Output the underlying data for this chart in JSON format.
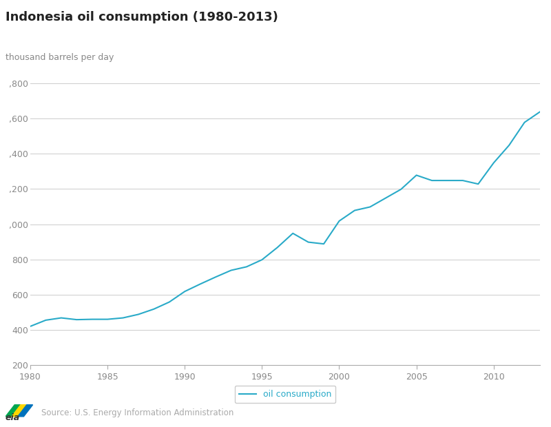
{
  "title": "Indonesia oil consumption (1980-2013)",
  "ylabel": "thousand barrels per day",
  "line_color": "#29aac8",
  "legend_label": "oil consumption",
  "source_text": "Source: U.S. Energy Information Administration",
  "ylim": [
    200,
    1800
  ],
  "xlim": [
    1980,
    2013
  ],
  "yticks": [
    200,
    400,
    600,
    800,
    1000,
    1200,
    1400,
    1600,
    1800
  ],
  "ytick_labels": [
    "200",
    "400",
    "600",
    "800",
    ",000",
    ",200",
    ",400",
    ",600",
    ",800"
  ],
  "xticks": [
    1980,
    1985,
    1990,
    1995,
    2000,
    2005,
    2010
  ],
  "years": [
    1980,
    1981,
    1982,
    1983,
    1984,
    1985,
    1986,
    1987,
    1988,
    1989,
    1990,
    1991,
    1992,
    1993,
    1994,
    1995,
    1996,
    1997,
    1998,
    1999,
    2000,
    2001,
    2002,
    2003,
    2004,
    2005,
    2006,
    2007,
    2008,
    2009,
    2010,
    2011,
    2012,
    2013
  ],
  "values": [
    420,
    455,
    468,
    458,
    460,
    460,
    468,
    488,
    518,
    558,
    618,
    660,
    700,
    738,
    758,
    798,
    868,
    948,
    898,
    888,
    1018,
    1078,
    1098,
    1148,
    1198,
    1278,
    1248,
    1248,
    1248,
    1228,
    1348,
    1448,
    1578,
    1638
  ]
}
